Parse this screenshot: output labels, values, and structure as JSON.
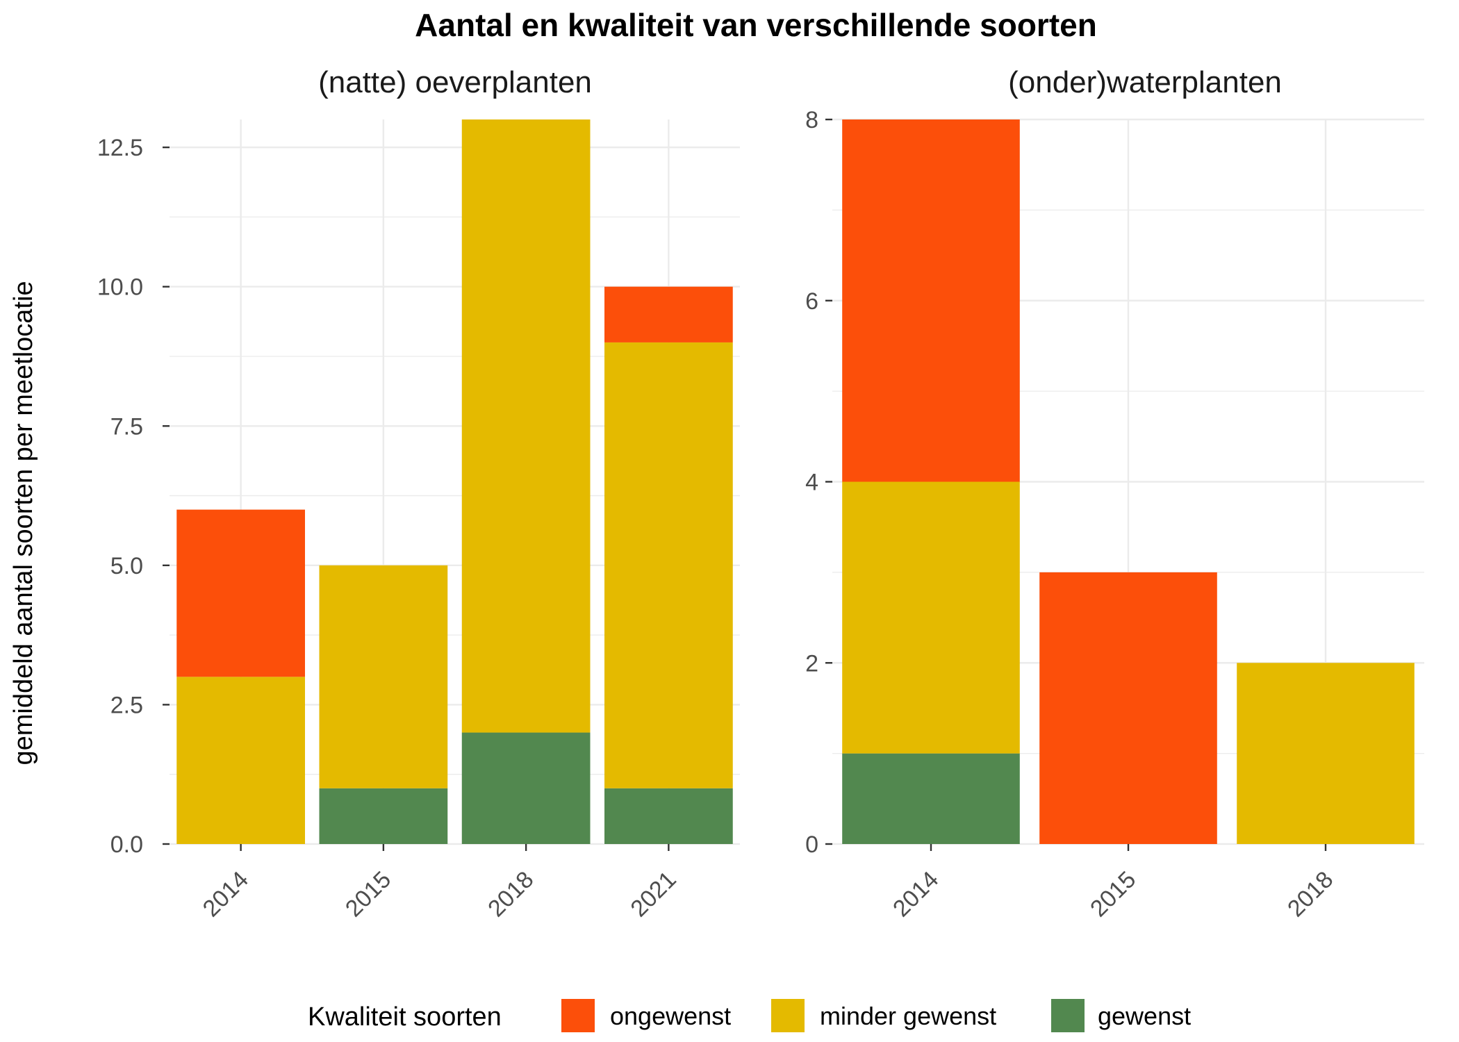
{
  "title": "Aantal en kwaliteit van verschillende soorten",
  "ylabel": "gemiddeld aantal soorten per meetlocatie",
  "legend": {
    "title": "Kwaliteit soorten",
    "items": [
      {
        "label": "ongewenst",
        "color": "#FC4F0A"
      },
      {
        "label": "minder gewenst",
        "color": "#E4BA00"
      },
      {
        "label": "gewenst",
        "color": "#52884F"
      }
    ]
  },
  "chart_data": [
    {
      "type": "bar",
      "stacked": true,
      "panel_title": "(natte) oeverplanten",
      "categories": [
        "2014",
        "2015",
        "2018",
        "2021"
      ],
      "series": [
        {
          "name": "gewenst",
          "color": "#52884F",
          "values": [
            0,
            1,
            2,
            1
          ]
        },
        {
          "name": "minder gewenst",
          "color": "#E4BA00",
          "values": [
            3,
            4,
            11,
            8
          ]
        },
        {
          "name": "ongewenst",
          "color": "#FC4F0A",
          "values": [
            3,
            0,
            0,
            1
          ]
        }
      ],
      "ylim": [
        0,
        13
      ],
      "yticks": [
        "0.0",
        "2.5",
        "5.0",
        "7.5",
        "10.0",
        "12.5"
      ],
      "ytick_values": [
        0,
        2.5,
        5,
        7.5,
        10,
        12.5
      ],
      "grid": true
    },
    {
      "type": "bar",
      "stacked": true,
      "panel_title": "(onder)waterplanten",
      "categories": [
        "2014",
        "2015",
        "2018"
      ],
      "series": [
        {
          "name": "gewenst",
          "color": "#52884F",
          "values": [
            1,
            0,
            0
          ]
        },
        {
          "name": "minder gewenst",
          "color": "#E4BA00",
          "values": [
            3,
            0,
            2
          ]
        },
        {
          "name": "ongewenst",
          "color": "#FC4F0A",
          "values": [
            4,
            3,
            0
          ]
        }
      ],
      "ylim": [
        0,
        8
      ],
      "yticks": [
        "0",
        "2",
        "4",
        "6",
        "8"
      ],
      "ytick_values": [
        0,
        2,
        4,
        6,
        8
      ],
      "grid": true
    }
  ]
}
